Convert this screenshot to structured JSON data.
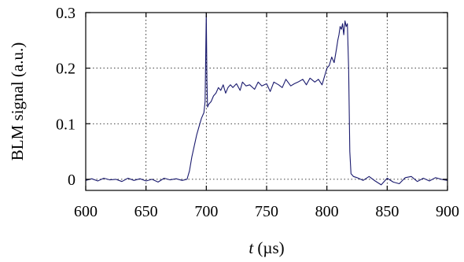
{
  "chart_data": {
    "type": "line",
    "xlabel_var": "t",
    "xlabel_unit": " (µs)",
    "ylabel": "BLM signal (a.u.)",
    "xlim": [
      600,
      900
    ],
    "ylim": [
      -0.02,
      0.3
    ],
    "grid": true,
    "x_ticks": [
      600,
      650,
      700,
      750,
      800,
      850,
      900
    ],
    "x_tick_labels": [
      "600",
      "650",
      "700",
      "750",
      "800",
      "850",
      "900"
    ],
    "y_ticks": [
      0,
      0.1,
      0.2,
      0.3
    ],
    "y_tick_labels": [
      "0",
      "0.1",
      "0.2",
      "0.3"
    ],
    "series": [
      {
        "color": "#1a1a6e",
        "x": [
          600,
          605,
          610,
          615,
          620,
          625,
          630,
          635,
          640,
          645,
          650,
          655,
          660,
          665,
          670,
          675,
          680,
          684,
          686,
          688,
          690,
          692,
          694,
          696,
          698,
          699,
          700,
          700.5,
          701,
          702,
          704,
          706,
          708,
          710,
          712,
          714,
          716,
          718,
          720,
          722,
          725,
          728,
          730,
          733,
          736,
          740,
          743,
          746,
          750,
          753,
          756,
          760,
          763,
          766,
          770,
          773,
          776,
          780,
          783,
          786,
          790,
          793,
          796,
          798,
          800,
          802,
          804,
          806,
          808,
          809,
          810,
          811,
          812,
          813,
          814,
          815,
          816,
          817,
          818,
          819,
          820,
          822,
          825,
          830,
          835,
          840,
          845,
          850,
          855,
          860,
          865,
          870,
          875,
          880,
          885,
          890,
          895,
          900
        ],
        "y": [
          -0.002,
          0.001,
          -0.003,
          0.002,
          -0.001,
          0.0,
          -0.004,
          0.002,
          -0.002,
          0.001,
          -0.003,
          0.0,
          -0.005,
          0.002,
          -0.001,
          0.001,
          -0.002,
          0.0,
          0.015,
          0.04,
          0.06,
          0.08,
          0.095,
          0.11,
          0.12,
          0.14,
          0.3,
          0.18,
          0.13,
          0.135,
          0.14,
          0.15,
          0.155,
          0.165,
          0.16,
          0.17,
          0.155,
          0.165,
          0.17,
          0.165,
          0.172,
          0.16,
          0.175,
          0.168,
          0.17,
          0.162,
          0.175,
          0.168,
          0.172,
          0.158,
          0.175,
          0.17,
          0.165,
          0.18,
          0.168,
          0.172,
          0.175,
          0.18,
          0.17,
          0.182,
          0.175,
          0.18,
          0.17,
          0.185,
          0.2,
          0.205,
          0.22,
          0.21,
          0.235,
          0.25,
          0.26,
          0.275,
          0.27,
          0.28,
          0.26,
          0.285,
          0.275,
          0.28,
          0.2,
          0.05,
          0.01,
          0.005,
          0.003,
          -0.002,
          0.005,
          -0.003,
          -0.01,
          0.002,
          -0.005,
          -0.008,
          0.003,
          0.005,
          -0.004,
          0.002,
          -0.003,
          0.003,
          0.0,
          -0.002
        ]
      }
    ]
  }
}
